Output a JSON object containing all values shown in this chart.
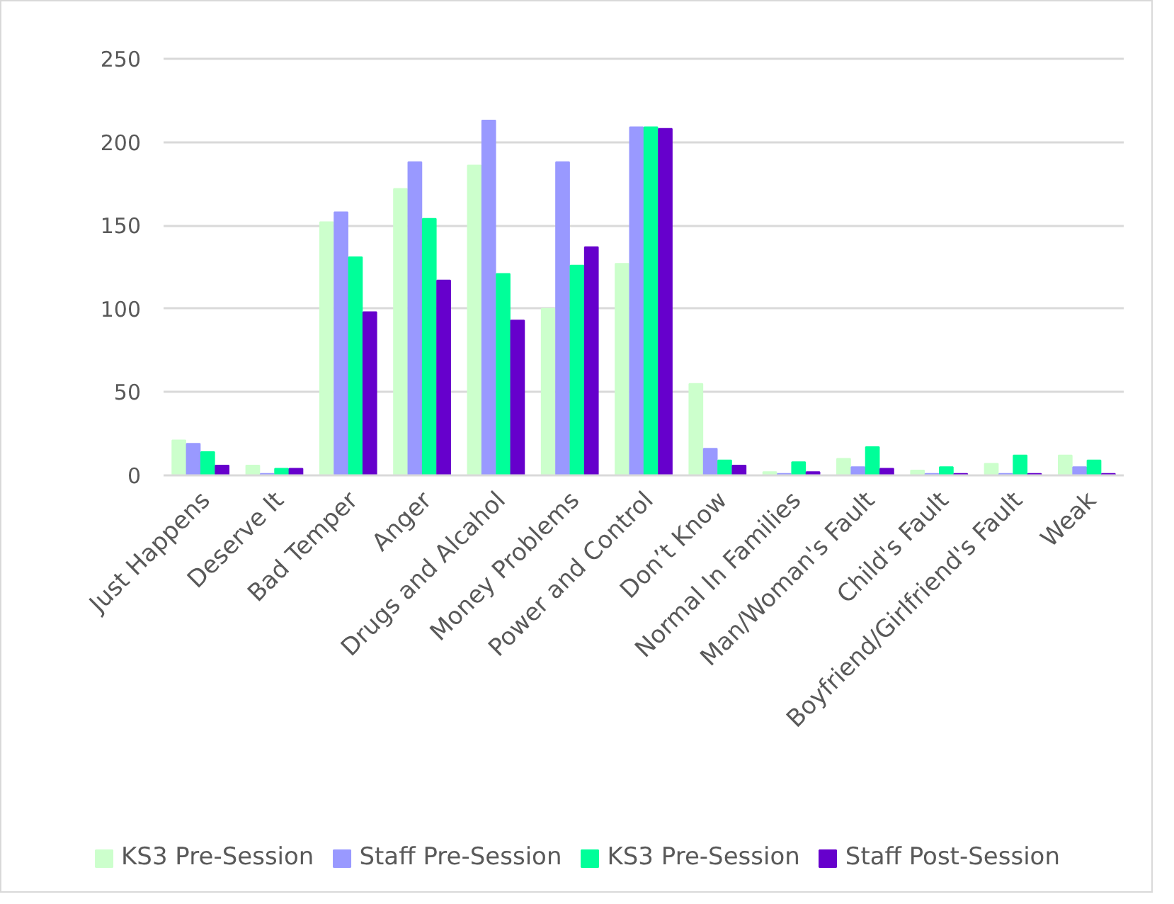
{
  "chart_data": {
    "type": "bar",
    "categories": [
      "Just Happens",
      "Deserve It",
      "Bad Temper",
      "Anger",
      "Drugs and Alcahol",
      "Money Problems",
      "Power and Control",
      "Don’t Know",
      "Normal In Families",
      "Man/Woman's Fault",
      "Child's Fault",
      "Boyfriend/Girlfriend's Fault",
      "Weak"
    ],
    "series": [
      {
        "name": "KS3 Pre-Session",
        "color": "#ccffcc",
        "values": [
          21,
          6,
          152,
          172,
          186,
          100,
          127,
          55,
          2,
          10,
          3,
          7,
          12
        ]
      },
      {
        "name": "Staff Pre-Session",
        "color": "#9999ff",
        "values": [
          19,
          1,
          158,
          188,
          213,
          188,
          209,
          16,
          1,
          5,
          1,
          1,
          5
        ]
      },
      {
        "name": "KS3 Pre-Session",
        "color": "#00ff99",
        "values": [
          14,
          4,
          131,
          154,
          121,
          126,
          209,
          9,
          8,
          17,
          5,
          12,
          9
        ]
      },
      {
        "name": "Staff Post-Session",
        "color": "#6600cc",
        "values": [
          6,
          4,
          98,
          117,
          93,
          137,
          208,
          6,
          2,
          4,
          1,
          1,
          1
        ]
      }
    ],
    "ylim": [
      0,
      250
    ],
    "yticks": [
      0,
      50,
      100,
      150,
      200,
      250
    ],
    "grid": "y",
    "legend": "bottom"
  }
}
